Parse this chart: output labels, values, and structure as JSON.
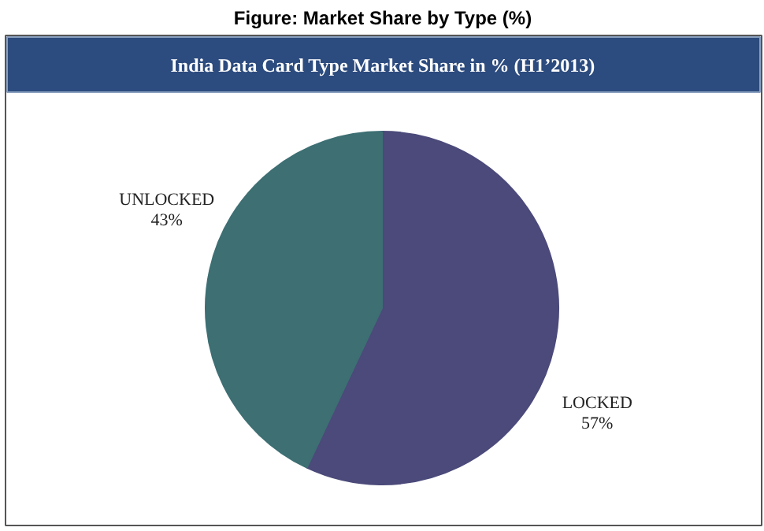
{
  "chart_data": {
    "type": "pie",
    "title": "Figure: Market Share by Type (%)",
    "subtitle": "India Data Card Type Market Share in % (H1’2013)",
    "categories": [
      "LOCKED",
      "UNLOCKED"
    ],
    "values": [
      57,
      43
    ],
    "colors": [
      "#4b4a7a",
      "#3d6f73"
    ],
    "value_labels": [
      "57%",
      "43%"
    ]
  }
}
